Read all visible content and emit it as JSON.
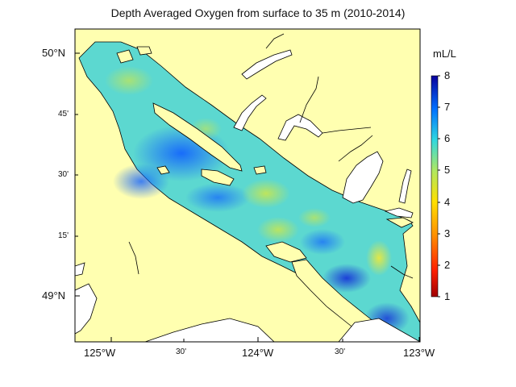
{
  "title": "Depth Averaged Oxygen from surface to 35 m (2010-2014)",
  "colorbar": {
    "unit": "mL/L",
    "ticks": [
      "8",
      "7",
      "6",
      "5",
      "4",
      "3",
      "2",
      "1"
    ],
    "range": [
      1,
      8
    ],
    "colors": [
      "#08009c",
      "#0040ff",
      "#00a8ff",
      "#40e0d0",
      "#c8e650",
      "#ffe000",
      "#ff7000",
      "#c00000"
    ]
  },
  "lat_labels": [
    "50°N",
    "45'",
    "30'",
    "15'",
    "49°N"
  ],
  "lon_labels": [
    "125°W",
    "30'",
    "124°W",
    "30'",
    "123°W"
  ],
  "colors": {
    "land": "#ffffb0",
    "water_fill": "#ffffff",
    "coast_line": "#000000",
    "frame": "#000000"
  }
}
